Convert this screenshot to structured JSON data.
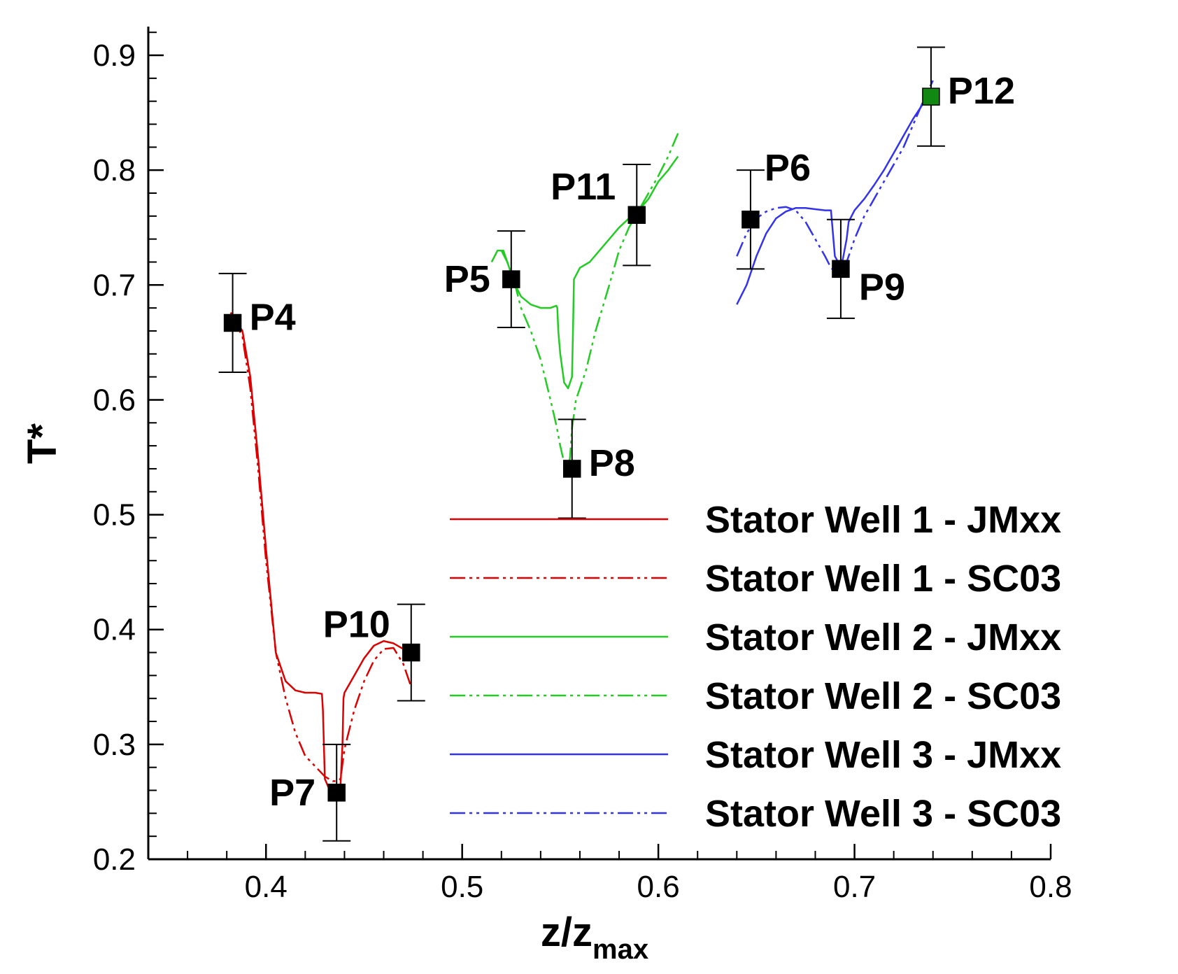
{
  "chart_data": {
    "type": "line",
    "xlabel": "z/z",
    "xlabel_sub": "max",
    "ylabel": "T*",
    "xlim": [
      0.34,
      0.8
    ],
    "ylim": [
      0.2,
      0.925
    ],
    "xticks": [
      0.4,
      0.5,
      0.6,
      0.7,
      0.8
    ],
    "xtick_labels": [
      "0.4",
      "0.5",
      "0.6",
      "0.7",
      "0.8"
    ],
    "yticks": [
      0.2,
      0.3,
      0.4,
      0.5,
      0.6,
      0.7,
      0.8,
      0.9
    ],
    "ytick_labels": [
      "0.2",
      "0.3",
      "0.4",
      "0.5",
      "0.6",
      "0.7",
      "0.8",
      "0.9"
    ],
    "grid": false,
    "legend_position": "center-right",
    "series": [
      {
        "name": "Stator Well 1 - JMxx",
        "color": "#dd0000",
        "dash": "solid",
        "x": [
          0.382,
          0.388,
          0.392,
          0.396,
          0.4,
          0.405,
          0.41,
          0.415,
          0.42,
          0.425,
          0.4285,
          0.429,
          0.4295,
          0.43,
          0.432,
          0.434,
          0.436,
          0.438,
          0.439,
          0.4395,
          0.44,
          0.445,
          0.45,
          0.455,
          0.46,
          0.465,
          0.47,
          0.475
        ],
        "y": [
          0.676,
          0.66,
          0.62,
          0.55,
          0.47,
          0.38,
          0.355,
          0.347,
          0.345,
          0.345,
          0.344,
          0.33,
          0.3,
          0.27,
          0.262,
          0.26,
          0.262,
          0.265,
          0.3,
          0.34,
          0.345,
          0.36,
          0.375,
          0.386,
          0.39,
          0.388,
          0.383,
          0.382
        ]
      },
      {
        "name": "Stator Well 1 - SC03",
        "color": "#dd0000",
        "dash": "dashdotdot",
        "x": [
          0.382,
          0.388,
          0.392,
          0.396,
          0.4,
          0.405,
          0.41,
          0.415,
          0.42,
          0.425,
          0.43,
          0.432,
          0.434,
          0.436,
          0.438,
          0.44,
          0.445,
          0.45,
          0.455,
          0.46,
          0.465,
          0.47,
          0.474
        ],
        "y": [
          0.676,
          0.655,
          0.61,
          0.54,
          0.46,
          0.38,
          0.34,
          0.31,
          0.29,
          0.281,
          0.272,
          0.27,
          0.268,
          0.268,
          0.27,
          0.296,
          0.33,
          0.355,
          0.373,
          0.383,
          0.384,
          0.37,
          0.35
        ]
      },
      {
        "name": "Stator Well 2 - JMxx",
        "color": "#22cc22",
        "dash": "solid",
        "x": [
          0.515,
          0.518,
          0.521,
          0.524,
          0.527,
          0.53,
          0.535,
          0.54,
          0.545,
          0.548,
          0.5485,
          0.549,
          0.55,
          0.552,
          0.554,
          0.556,
          0.5565,
          0.557,
          0.56,
          0.565,
          0.57,
          0.575,
          0.58,
          0.585,
          0.59,
          0.595,
          0.6,
          0.605,
          0.61
        ],
        "y": [
          0.72,
          0.73,
          0.73,
          0.715,
          0.7,
          0.69,
          0.683,
          0.68,
          0.68,
          0.682,
          0.68,
          0.66,
          0.64,
          0.615,
          0.61,
          0.62,
          0.66,
          0.705,
          0.715,
          0.72,
          0.73,
          0.74,
          0.75,
          0.758,
          0.765,
          0.775,
          0.79,
          0.8,
          0.812
        ]
      },
      {
        "name": "Stator Well 2 - SC03",
        "color": "#22cc22",
        "dash": "dashdotdot",
        "x": [
          0.52,
          0.523,
          0.527,
          0.53,
          0.535,
          0.54,
          0.545,
          0.548,
          0.55,
          0.552,
          0.554,
          0.555,
          0.556,
          0.558,
          0.56,
          0.563,
          0.568,
          0.575,
          0.58,
          0.585,
          0.59,
          0.595,
          0.6,
          0.605,
          0.61
        ],
        "y": [
          0.73,
          0.72,
          0.7,
          0.68,
          0.66,
          0.635,
          0.6,
          0.578,
          0.56,
          0.545,
          0.54,
          0.55,
          0.575,
          0.6,
          0.61,
          0.625,
          0.66,
          0.7,
          0.73,
          0.75,
          0.765,
          0.78,
          0.795,
          0.812,
          0.832
        ]
      },
      {
        "name": "Stator Well 3 - JMxx",
        "color": "#3333ee",
        "dash": "solid",
        "x": [
          0.64,
          0.645,
          0.65,
          0.655,
          0.66,
          0.665,
          0.67,
          0.675,
          0.68,
          0.685,
          0.688,
          0.689,
          0.69,
          0.692,
          0.694,
          0.696,
          0.697,
          0.7,
          0.705,
          0.71,
          0.715,
          0.72,
          0.725,
          0.73,
          0.735,
          0.74
        ],
        "y": [
          0.683,
          0.7,
          0.725,
          0.745,
          0.758,
          0.764,
          0.767,
          0.767,
          0.766,
          0.765,
          0.765,
          0.745,
          0.725,
          0.719,
          0.722,
          0.74,
          0.755,
          0.765,
          0.775,
          0.787,
          0.8,
          0.815,
          0.83,
          0.845,
          0.858,
          0.87
        ]
      },
      {
        "name": "Stator Well 3 - SC03",
        "color": "#3333ee",
        "dash": "dashdotdot",
        "x": [
          0.64,
          0.645,
          0.65,
          0.655,
          0.66,
          0.665,
          0.67,
          0.675,
          0.68,
          0.685,
          0.688,
          0.69,
          0.693,
          0.696,
          0.7,
          0.705,
          0.71,
          0.715,
          0.72,
          0.725,
          0.73,
          0.735,
          0.74
        ],
        "y": [
          0.725,
          0.745,
          0.758,
          0.764,
          0.767,
          0.768,
          0.765,
          0.755,
          0.74,
          0.725,
          0.715,
          0.712,
          0.713,
          0.72,
          0.74,
          0.76,
          0.775,
          0.79,
          0.805,
          0.82,
          0.84,
          0.86,
          0.878
        ]
      }
    ],
    "points": [
      {
        "label": "P4",
        "x": 0.383,
        "y": 0.667,
        "err": 0.043,
        "color": "#000000",
        "label_pos": "right"
      },
      {
        "label": "P7",
        "x": 0.436,
        "y": 0.258,
        "err": 0.042,
        "color": "#000000",
        "label_pos": "left"
      },
      {
        "label": "P10",
        "x": 0.474,
        "y": 0.38,
        "err": 0.042,
        "color": "#000000",
        "label_pos": "upper-left"
      },
      {
        "label": "P5",
        "x": 0.525,
        "y": 0.705,
        "err": 0.042,
        "color": "#000000",
        "label_pos": "left"
      },
      {
        "label": "P8",
        "x": 0.556,
        "y": 0.54,
        "err": 0.043,
        "color": "#000000",
        "label_pos": "right"
      },
      {
        "label": "P11",
        "x": 0.589,
        "y": 0.761,
        "err": 0.044,
        "color": "#000000",
        "label_pos": "upper-left"
      },
      {
        "label": "P6",
        "x": 0.647,
        "y": 0.757,
        "err": 0.043,
        "color": "#000000",
        "label_pos": "upper-right"
      },
      {
        "label": "P9",
        "x": 0.693,
        "y": 0.714,
        "err": 0.043,
        "color": "#000000",
        "label_pos": "lower-right"
      },
      {
        "label": "P12",
        "x": 0.739,
        "y": 0.864,
        "err": 0.043,
        "color": "#118811",
        "label_pos": "right"
      }
    ]
  }
}
